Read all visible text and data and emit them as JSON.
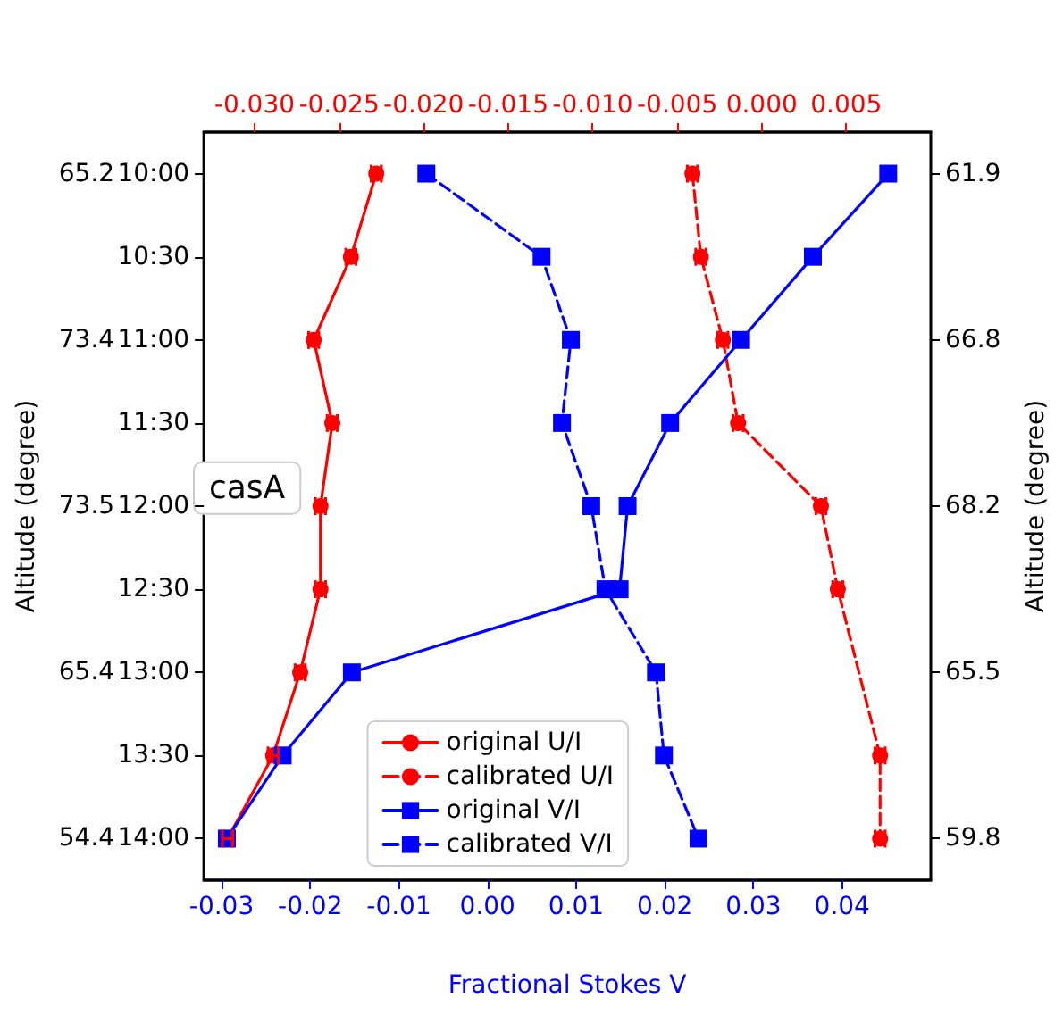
{
  "chart_data": {
    "type": "line",
    "orientation": "horizontal",
    "categories": [
      "10:00",
      "10:30",
      "11:00",
      "11:30",
      "12:00",
      "12:30",
      "13:00",
      "13:30",
      "14:00"
    ],
    "y2_categories": [
      "61.9",
      null,
      "66.8",
      null,
      "68.2",
      null,
      "65.5",
      null,
      "59.8"
    ],
    "ylabel": "Altitude (degree)",
    "y2label": "Altitude (degree)",
    "xlim": [
      -0.032,
      0.05
    ],
    "xticks": [
      -0.03,
      -0.02,
      -0.01,
      {
        "value": 0,
        "label": "0.00"
      },
      0.01,
      0.02,
      0.03,
      0.04
    ],
    "xlabel": "Fractional Stokes V",
    "x2lim": [
      -0.033,
      0.01
    ],
    "x2ticks": [
      {
        "value": -0.03,
        "label": "-0.030"
      },
      {
        "value": -0.025,
        "label": "-0.025"
      },
      {
        "value": -0.02,
        "label": "-0.020"
      },
      {
        "value": -0.015,
        "label": "-0.015"
      },
      {
        "value": -0.01,
        "label": "-0.010"
      },
      {
        "value": -0.005,
        "label": "-0.005"
      },
      {
        "value": 0,
        "label": "0.000"
      },
      {
        "value": 0.005,
        "label": "0.005"
      }
    ],
    "series": [
      {
        "name": "original U/I",
        "color": "#ff0000",
        "axis": "x2",
        "marker": "circle",
        "line_style": "solid",
        "values": [
          -0.0228,
          -0.0243,
          -0.0265,
          -0.0254,
          -0.0261,
          -0.0261,
          -0.0273,
          -0.0289,
          -0.0316
        ],
        "errors": [
          0.0003,
          0.0003,
          0.0003,
          0.0003,
          0.0003,
          0.0003,
          0.0003,
          0.0003,
          0.0003
        ]
      },
      {
        "name": "calibrated U/I",
        "color": "#ff0000",
        "axis": "x2",
        "marker": "circle",
        "line_style": "dashed",
        "values": [
          -0.0041,
          -0.0036,
          -0.0023,
          -0.0014,
          0.0035,
          0.0045,
          null,
          0.007,
          0.007
        ],
        "errors": [
          0.0003,
          0.0003,
          0.0003,
          0.0003,
          0.0003,
          0.0003,
          null,
          0.0003,
          0.0003
        ]
      },
      {
        "name": "original V/I",
        "color": "#0000ff",
        "marker": "square",
        "line_style": "solid",
        "values": [
          0.0452,
          0.0367,
          0.0286,
          0.0206,
          0.0158,
          0.0149,
          -0.0153,
          -0.0231,
          -0.0294
        ]
      },
      {
        "name": "calibrated V/I",
        "color": "#0000ff",
        "marker": "square",
        "line_style": "dashed",
        "values": [
          -0.0069,
          0.0061,
          0.0094,
          0.0084,
          0.0117,
          0.0133,
          0.019,
          0.0199,
          0.0238
        ]
      }
    ],
    "annotations": [
      "65.2",
      "73.4",
      "73.5",
      "65.4",
      "54.4",
      "casA"
    ],
    "legend": "bottom",
    "grid": false
  }
}
